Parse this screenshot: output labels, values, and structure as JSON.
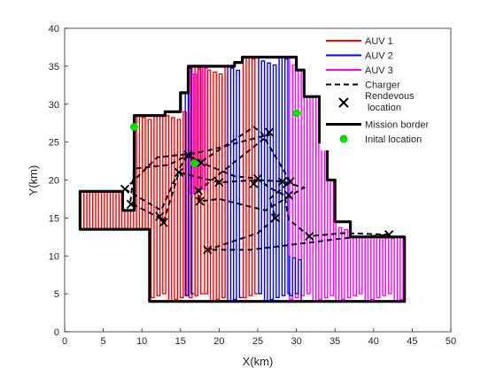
{
  "chart_data": {
    "type": "line",
    "xlabel": "X(km)",
    "ylabel": "Y(km)",
    "xlim": [
      0,
      50
    ],
    "ylim": [
      0,
      40
    ],
    "xticks": [
      0,
      5,
      10,
      15,
      20,
      25,
      30,
      35,
      40,
      45,
      50
    ],
    "yticks": [
      0,
      5,
      10,
      15,
      20,
      25,
      30,
      35,
      40
    ],
    "grid": false,
    "legend_position": "top-right",
    "colors": {
      "auv1": "#ff0000",
      "auv2": "#0000ff",
      "auv3": "#ff00ff",
      "charger": "#000000",
      "border": "#000000",
      "initial": "#00e000"
    },
    "legend": [
      {
        "key": "auv1",
        "label": "AUV 1",
        "style": "line"
      },
      {
        "key": "auv2",
        "label": "AUV 2",
        "style": "line"
      },
      {
        "key": "auv3",
        "label": "AUV 3",
        "style": "line"
      },
      {
        "key": "charger",
        "label": "Charger",
        "style": "dash"
      },
      {
        "key": "rendezvous",
        "label": "Rendevous\n location",
        "style": "cross"
      },
      {
        "key": "border",
        "label": "Mission border",
        "style": "thick"
      },
      {
        "key": "initial",
        "label": "Inital location",
        "style": "dot"
      }
    ],
    "mission_border": [
      [
        2,
        18.5
      ],
      [
        7.5,
        18.5
      ],
      [
        7.5,
        16
      ],
      [
        9,
        16
      ],
      [
        9,
        28.5
      ],
      [
        13,
        28.5
      ],
      [
        13,
        29
      ],
      [
        15,
        29
      ],
      [
        15,
        31.5
      ],
      [
        16,
        31.5
      ],
      [
        16,
        35
      ],
      [
        22,
        35
      ],
      [
        22,
        35.5
      ],
      [
        23,
        35.5
      ],
      [
        23,
        36.2
      ],
      [
        30,
        36.2
      ],
      [
        30,
        34.5
      ],
      [
        31,
        34.5
      ],
      [
        31,
        31
      ],
      [
        33,
        31
      ],
      [
        33,
        25
      ],
      [
        34,
        25
      ],
      [
        34,
        20
      ],
      [
        35,
        20
      ],
      [
        35,
        14.5
      ],
      [
        37,
        14.5
      ],
      [
        37,
        12.5
      ],
      [
        44,
        12.5
      ],
      [
        44,
        4
      ],
      [
        11,
        4
      ],
      [
        11,
        13.5
      ],
      [
        2,
        13.5
      ],
      [
        2,
        18.5
      ]
    ],
    "auv_regions": [
      {
        "key": "auv1",
        "x_from": 2,
        "x_to": 16.2,
        "y_from": 4,
        "y_to": 29
      },
      {
        "key": "auv1",
        "x_from": 16,
        "x_to": 18,
        "y_from": 4,
        "y_to": 35
      },
      {
        "key": "auv1",
        "x_from": 18,
        "x_to": 21,
        "y_from": 4,
        "y_to": 35
      },
      {
        "key": "auv3",
        "x_from": 16.2,
        "x_to": 18.5,
        "y_from": 18,
        "y_to": 35
      },
      {
        "key": "auv2",
        "x_from": 15.5,
        "x_to": 16.5,
        "y_from": 4,
        "y_to": 35
      },
      {
        "key": "auv2",
        "x_from": 21,
        "x_to": 23,
        "y_from": 4,
        "y_to": 35.5
      },
      {
        "key": "auv1",
        "x_from": 23,
        "x_to": 25,
        "y_from": 4,
        "y_to": 36.2
      },
      {
        "key": "auv2",
        "x_from": 25,
        "x_to": 29,
        "y_from": 4,
        "y_to": 36.2
      },
      {
        "key": "auv3",
        "x_from": 29,
        "x_to": 35,
        "y_from": 4,
        "y_to": 36.2
      },
      {
        "key": "auv2",
        "x_from": 29,
        "x_to": 31,
        "y_from": 4,
        "y_to": 10
      },
      {
        "key": "auv3",
        "x_from": 35,
        "x_to": 44,
        "y_from": 4,
        "y_to": 14.5
      }
    ],
    "charger_path": [
      [
        7.8,
        18.8
      ],
      [
        12.5,
        16
      ],
      [
        15,
        21.8
      ],
      [
        16,
        23.3
      ],
      [
        16.8,
        22.8
      ],
      [
        17.7,
        22.3
      ],
      [
        22,
        20.5
      ],
      [
        25,
        20.2
      ],
      [
        26.5,
        19
      ],
      [
        28.5,
        18
      ],
      [
        29,
        14.8
      ],
      [
        31.7,
        12.6
      ],
      [
        36,
        13
      ],
      [
        42,
        12.8
      ],
      [
        36,
        12.3
      ],
      [
        28,
        11.3
      ],
      [
        24,
        10.8
      ],
      [
        18.5,
        10.8
      ],
      [
        25,
        13
      ],
      [
        27.3,
        15
      ],
      [
        26.5,
        17.5
      ],
      [
        29.2,
        19.8
      ],
      [
        25.5,
        26.2
      ],
      [
        24.5,
        27
      ],
      [
        17.5,
        22.3
      ],
      [
        16,
        23.3
      ],
      [
        13.5,
        22
      ],
      [
        9,
        21.5
      ],
      [
        8.5,
        17
      ],
      [
        12.3,
        15
      ],
      [
        12.8,
        14.5
      ],
      [
        14.8,
        21
      ],
      [
        20,
        19.7
      ],
      [
        25,
        20
      ],
      [
        28.2,
        19.8
      ],
      [
        31,
        19
      ],
      [
        26,
        16
      ],
      [
        20,
        17.5
      ],
      [
        17.5,
        17.2
      ],
      [
        17.3,
        18.6
      ],
      [
        26.5,
        26
      ],
      [
        19,
        24
      ],
      [
        16.7,
        23.5
      ],
      [
        12,
        23
      ],
      [
        8,
        19
      ]
    ],
    "rendezvous_points": [
      [
        7.8,
        18.8
      ],
      [
        8.6,
        16.8
      ],
      [
        12.3,
        15.2
      ],
      [
        12.8,
        14.4
      ],
      [
        14.8,
        21
      ],
      [
        16,
        23.3
      ],
      [
        17.7,
        22.3
      ],
      [
        17.3,
        18.6
      ],
      [
        17.5,
        17.2
      ],
      [
        18.5,
        10.8
      ],
      [
        20,
        19.7
      ],
      [
        24.5,
        19.5
      ],
      [
        25,
        20.2
      ],
      [
        26.5,
        26.3
      ],
      [
        27.3,
        15
      ],
      [
        28.2,
        19.8
      ],
      [
        29.2,
        19.8
      ],
      [
        29,
        18
      ],
      [
        31.7,
        12.6
      ],
      [
        42,
        12.8
      ]
    ],
    "initial_locations": [
      [
        9,
        27
      ],
      [
        16.8,
        22.2
      ],
      [
        30,
        28.8
      ]
    ]
  }
}
